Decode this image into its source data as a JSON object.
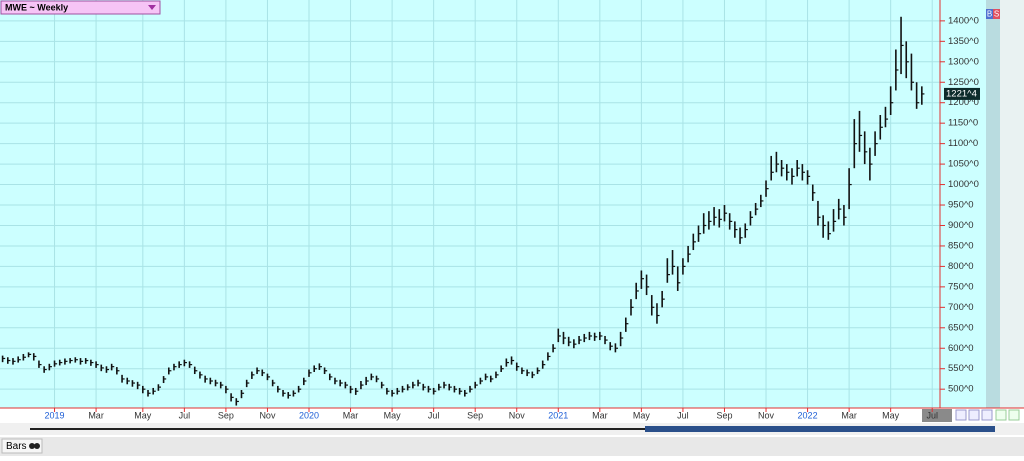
{
  "chart_data": {
    "type": "ohlc",
    "title": "MWE ~ Weekly",
    "xlim": [
      -0.5,
      180.5
    ],
    "ylim": [
      454,
      1451
    ],
    "xticks": [
      {
        "value": 10,
        "label": "2019"
      },
      {
        "value": 18,
        "label": "Mar"
      },
      {
        "value": 27,
        "label": "May"
      },
      {
        "value": 35,
        "label": "Jul"
      },
      {
        "value": 43,
        "label": "Sep"
      },
      {
        "value": 51,
        "label": "Nov"
      },
      {
        "value": 59,
        "label": "2020"
      },
      {
        "value": 67,
        "label": "Mar"
      },
      {
        "value": 75,
        "label": "May"
      },
      {
        "value": 83,
        "label": "Jul"
      },
      {
        "value": 91,
        "label": "Sep"
      },
      {
        "value": 99,
        "label": "Nov"
      },
      {
        "value": 107,
        "label": "2021"
      },
      {
        "value": 115,
        "label": "Mar"
      },
      {
        "value": 123,
        "label": "May"
      },
      {
        "value": 131,
        "label": "Jul"
      },
      {
        "value": 139,
        "label": "Sep"
      },
      {
        "value": 147,
        "label": "Nov"
      },
      {
        "value": 155,
        "label": "2022"
      },
      {
        "value": 163,
        "label": "Mar"
      },
      {
        "value": 171,
        "label": "May"
      },
      {
        "value": 179,
        "label": "Jul"
      }
    ],
    "yticks": [
      {
        "value": 500,
        "label": "500^0"
      },
      {
        "value": 550,
        "label": "550^0"
      },
      {
        "value": 600,
        "label": "600^0"
      },
      {
        "value": 650,
        "label": "650^0"
      },
      {
        "value": 700,
        "label": "700^0"
      },
      {
        "value": 750,
        "label": "750^0"
      },
      {
        "value": 800,
        "label": "800^0"
      },
      {
        "value": 850,
        "label": "850^0"
      },
      {
        "value": 900,
        "label": "900^0"
      },
      {
        "value": 950,
        "label": "950^0"
      },
      {
        "value": 1000,
        "label": "1000^0"
      },
      {
        "value": 1050,
        "label": "1050^0"
      },
      {
        "value": 1100,
        "label": "1100^0"
      },
      {
        "value": 1150,
        "label": "1150^0"
      },
      {
        "value": 1200,
        "label": "1200^0"
      },
      {
        "value": 1250,
        "label": "1250^0"
      },
      {
        "value": 1300,
        "label": "1300^0"
      },
      {
        "value": 1350,
        "label": "1350^0"
      },
      {
        "value": 1400,
        "label": "1400^0"
      }
    ],
    "grid": true,
    "color": "#111111",
    "last_price": {
      "value": 1221.5,
      "label": "1221^4"
    },
    "close": [
      575,
      570,
      568,
      572,
      578,
      585,
      580,
      560,
      548,
      555,
      562,
      565,
      568,
      570,
      572,
      568,
      570,
      565,
      560,
      552,
      548,
      555,
      545,
      525,
      520,
      515,
      510,
      500,
      490,
      495,
      505,
      525,
      545,
      555,
      560,
      565,
      560,
      545,
      535,
      525,
      520,
      515,
      510,
      500,
      480,
      470,
      490,
      515,
      535,
      545,
      540,
      530,
      515,
      500,
      490,
      485,
      490,
      500,
      520,
      540,
      550,
      555,
      545,
      530,
      520,
      515,
      510,
      500,
      495,
      510,
      520,
      530,
      525,
      510,
      495,
      490,
      495,
      500,
      505,
      510,
      515,
      505,
      500,
      495,
      505,
      510,
      505,
      500,
      495,
      490,
      500,
      510,
      520,
      530,
      525,
      535,
      550,
      565,
      570,
      555,
      545,
      540,
      535,
      545,
      560,
      580,
      600,
      630,
      625,
      615,
      610,
      620,
      625,
      630,
      628,
      630,
      620,
      605,
      600,
      625,
      660,
      700,
      740,
      770,
      750,
      700,
      680,
      720,
      780,
      800,
      760,
      800,
      830,
      860,
      880,
      900,
      910,
      920,
      915,
      930,
      910,
      890,
      870,
      890,
      920,
      940,
      960,
      990,
      1030,
      1050,
      1040,
      1030,
      1020,
      1040,
      1030,
      1020,
      980,
      920,
      900,
      880,
      910,
      940,
      920,
      1000,
      1100,
      1120,
      1080,
      1050,
      1100,
      1140,
      1160,
      1200,
      1280,
      1340,
      1300,
      1250,
      1200,
      1221.5
    ],
    "high": [
      582,
      578,
      576,
      580,
      586,
      590,
      588,
      570,
      556,
      562,
      570,
      572,
      575,
      576,
      578,
      576,
      576,
      572,
      568,
      560,
      556,
      562,
      554,
      535,
      528,
      522,
      518,
      508,
      498,
      503,
      512,
      532,
      553,
      562,
      568,
      572,
      568,
      555,
      543,
      533,
      528,
      523,
      518,
      508,
      490,
      478,
      498,
      523,
      543,
      553,
      548,
      538,
      523,
      508,
      498,
      493,
      497,
      508,
      528,
      548,
      558,
      563,
      553,
      538,
      528,
      523,
      518,
      508,
      503,
      520,
      530,
      538,
      533,
      518,
      503,
      498,
      503,
      508,
      512,
      518,
      523,
      513,
      508,
      503,
      513,
      518,
      513,
      508,
      503,
      498,
      508,
      518,
      528,
      538,
      533,
      543,
      558,
      575,
      580,
      565,
      553,
      548,
      543,
      553,
      570,
      590,
      610,
      648,
      640,
      628,
      622,
      630,
      635,
      640,
      638,
      640,
      630,
      615,
      612,
      640,
      675,
      720,
      760,
      790,
      780,
      730,
      710,
      740,
      820,
      840,
      800,
      820,
      850,
      880,
      900,
      930,
      935,
      945,
      940,
      950,
      930,
      910,
      895,
      905,
      935,
      955,
      975,
      1010,
      1070,
      1080,
      1060,
      1050,
      1040,
      1060,
      1050,
      1035,
      1000,
      960,
      925,
      910,
      940,
      965,
      950,
      1040,
      1160,
      1180,
      1130,
      1090,
      1130,
      1170,
      1190,
      1240,
      1330,
      1410,
      1350,
      1320,
      1250,
      1240
    ],
    "low": [
      566,
      562,
      560,
      565,
      570,
      578,
      570,
      552,
      540,
      546,
      555,
      558,
      560,
      563,
      565,
      560,
      562,
      557,
      552,
      544,
      540,
      546,
      536,
      516,
      512,
      506,
      500,
      490,
      482,
      487,
      496,
      515,
      536,
      546,
      552,
      556,
      552,
      537,
      526,
      516,
      512,
      507,
      502,
      490,
      470,
      460,
      478,
      505,
      525,
      537,
      532,
      522,
      507,
      492,
      482,
      477,
      482,
      492,
      510,
      530,
      542,
      547,
      537,
      522,
      512,
      507,
      502,
      490,
      486,
      500,
      510,
      522,
      517,
      502,
      487,
      482,
      487,
      492,
      497,
      502,
      507,
      497,
      492,
      487,
      497,
      502,
      497,
      492,
      487,
      482,
      492,
      502,
      512,
      522,
      517,
      527,
      542,
      555,
      560,
      545,
      537,
      532,
      527,
      537,
      550,
      570,
      590,
      615,
      610,
      605,
      600,
      610,
      615,
      620,
      618,
      620,
      610,
      595,
      590,
      605,
      640,
      680,
      720,
      745,
      730,
      680,
      660,
      700,
      760,
      780,
      740,
      780,
      810,
      840,
      860,
      880,
      890,
      900,
      895,
      910,
      890,
      870,
      855,
      870,
      900,
      925,
      945,
      970,
      1010,
      1030,
      1020,
      1010,
      1000,
      1020,
      1010,
      1000,
      960,
      900,
      870,
      865,
      885,
      915,
      900,
      940,
      1040,
      1080,
      1050,
      1010,
      1070,
      1110,
      1140,
      1170,
      1230,
      1270,
      1260,
      1230,
      1185,
      1195
    ],
    "badges": [
      "B",
      "S"
    ]
  },
  "toolbar": {
    "label": "Bars"
  }
}
